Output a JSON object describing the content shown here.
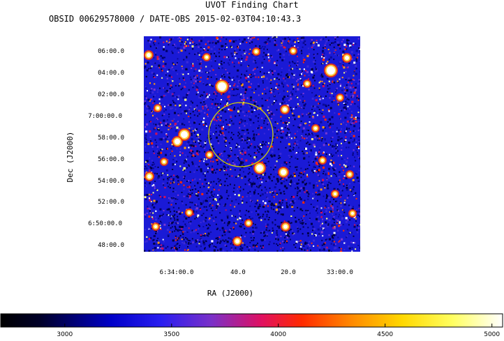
{
  "header": {
    "title": "UVOT Finding Chart",
    "subtitle": "OBSID 00629578000 / DATE-OBS 2015-02-03T04:10:43.3"
  },
  "axes": {
    "xlabel": "RA (J2000)",
    "ylabel": "Dec (J2000)",
    "ra_ticks": [
      "6:34:00.0",
      "40.0",
      "20.0",
      "33:00.0"
    ],
    "dec_ticks": [
      "06:00.0",
      "04:00.0",
      "02:00.0",
      "7:00:00.0",
      "58:00.0",
      "56:00.0",
      "54:00.0",
      "52:00.0",
      "6:50:00.0",
      "48:00.0"
    ]
  },
  "colorbar": {
    "min": 2700,
    "max": 5050,
    "ticks": [
      "3000",
      "3500",
      "4000",
      "4500",
      "5000"
    ],
    "tick_values": [
      3000,
      3500,
      4000,
      4500,
      5000
    ]
  },
  "colors": {
    "background_field": "#1a1ad6",
    "circle": "#d4d400"
  }
}
